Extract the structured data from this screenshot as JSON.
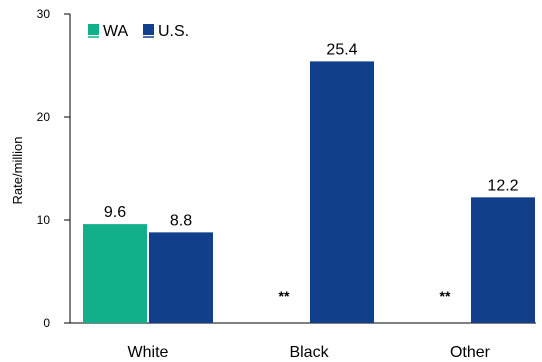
{
  "chart_data": {
    "type": "bar",
    "categories": [
      "White",
      "Black",
      "Other"
    ],
    "series": [
      {
        "name": "WA",
        "color": "#12b08a",
        "values": [
          9.6,
          null,
          null
        ],
        "labels": [
          "9.6",
          "**",
          "**"
        ]
      },
      {
        "name": "U.S.",
        "color": "#123f8c",
        "values": [
          8.8,
          25.4,
          12.2
        ],
        "labels": [
          "8.8",
          "25.4",
          "12.2"
        ]
      }
    ],
    "ylabel": "Rate/million",
    "ylim": [
      0,
      30
    ],
    "yticks": [
      0,
      10,
      20,
      30
    ],
    "legend_position": "top-left",
    "grid": false
  }
}
